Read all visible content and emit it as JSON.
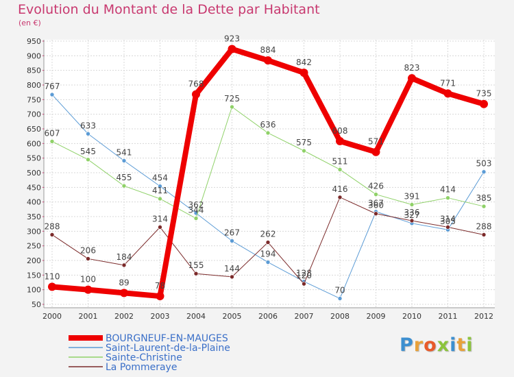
{
  "title": "Evolution du Montant de la Dette par Habitant",
  "subtitle": "(en €)",
  "logo": {
    "text": "Proxiti",
    "letters": [
      {
        "ch": "P",
        "color": "#3c8fd0"
      },
      {
        "ch": "r",
        "color": "#e8a13a"
      },
      {
        "ch": "o",
        "color": "#e85a2a"
      },
      {
        "ch": "x",
        "color": "#8cc43c"
      },
      {
        "ch": "i",
        "color": "#3c8fd0"
      },
      {
        "ch": "t",
        "color": "#e8a13a"
      },
      {
        "ch": "i",
        "color": "#8cc43c"
      }
    ]
  },
  "chart_data": {
    "type": "line",
    "title": "Evolution du Montant de la Dette par Habitant",
    "subtitle": "(en €)",
    "x": [
      "2000",
      "2001",
      "2002",
      "2003",
      "2004",
      "2005",
      "2006",
      "2007",
      "2008",
      "2009",
      "2010",
      "2011",
      "2012"
    ],
    "yticks": [
      50,
      100,
      150,
      200,
      250,
      300,
      350,
      400,
      450,
      500,
      550,
      600,
      650,
      700,
      750,
      800,
      850,
      900,
      950
    ],
    "ylim": [
      50,
      950
    ],
    "grid": true,
    "legend_position": "bottom-left",
    "series": [
      {
        "name": "Saint-Laurent-de-la-Plaine",
        "color": "#5b9bd5",
        "width": 1,
        "values": [
          767,
          633,
          541,
          454,
          362,
          267,
          194,
          128,
          70,
          367,
          327,
          305,
          503
        ],
        "labels": [
          "767",
          "633",
          "541",
          "454",
          "362",
          "267",
          "194",
          "128",
          "70",
          "367",
          "327",
          "305",
          "503"
        ]
      },
      {
        "name": "Sainte-Christine",
        "color": "#8fd168",
        "width": 1,
        "values": [
          607,
          545,
          455,
          411,
          344,
          725,
          636,
          575,
          511,
          426,
          391,
          414,
          385
        ],
        "labels": [
          "607",
          "545",
          "455",
          "411",
          "344",
          "725",
          "636",
          "575",
          "511",
          "426",
          "391",
          "414",
          "385"
        ]
      },
      {
        "name": "La Pommeraye",
        "color": "#7b2a2a",
        "width": 1,
        "values": [
          288,
          206,
          184,
          314,
          155,
          144,
          262,
          120,
          416,
          360,
          336,
          314,
          288
        ],
        "labels": [
          "288",
          "206",
          "184",
          "314",
          "155",
          "144",
          "262",
          "120",
          "416",
          "360",
          "336",
          "314",
          "288"
        ]
      },
      {
        "name": "BOURGNEUF-EN-MAUGES",
        "color": "#ee0000",
        "width": 8,
        "values": [
          110,
          100,
          89,
          78,
          768,
          923,
          884,
          842,
          608,
          571,
          823,
          771,
          735
        ],
        "labels": [
          "110",
          "100",
          "89",
          "78",
          "768",
          "923",
          "884",
          "842",
          "608",
          "571",
          "823",
          "771",
          "735"
        ]
      }
    ],
    "legend_order": [
      "BOURGNEUF-EN-MAUGES",
      "Saint-Laurent-de-la-Plaine",
      "Sainte-Christine",
      "La Pommeraye"
    ]
  }
}
